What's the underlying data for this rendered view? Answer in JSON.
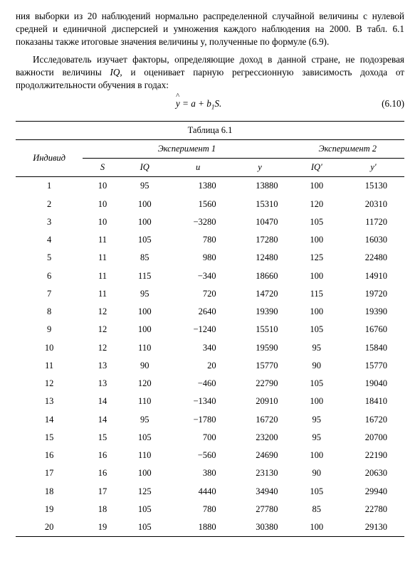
{
  "paragraphs": {
    "p1": "ния выборки из 20 наблюдений нормально распределенной случайной величины с нулевой средней и единичной дисперсией и умножения каждого наблюдения на 2000. В табл. 6.1 показаны также итоговые значения величины y, полученные по формуле (6.9).",
    "p2_a": "Исследователь изучает факторы, определяющие доход в данной стране, не подозревая важности величины ",
    "p2_iq": "IQ,",
    "p2_b": " и оценивает парную регрессионную зависимость дохода от продолжительности обучения в годах:"
  },
  "equation": {
    "lhs_var": "y",
    "rhs": " = a + b",
    "sub": "1",
    "tail": "S.",
    "number": "(6.10)"
  },
  "table": {
    "caption": "Таблица 6.1",
    "header": {
      "individ": "Индивид",
      "exp1": "Эксперимент 1",
      "exp2": "Эксперимент 2",
      "s": "S",
      "iq": "IQ",
      "u": "u",
      "y": "y",
      "iq2": "IQ'",
      "y2": "y'"
    },
    "rows": [
      {
        "idx": "1",
        "s": "10",
        "iq": "95",
        "u": "1380",
        "y": "13880",
        "iq2": "100",
        "y2": "15130"
      },
      {
        "idx": "2",
        "s": "10",
        "iq": "100",
        "u": "1560",
        "y": "15310",
        "iq2": "120",
        "y2": "20310"
      },
      {
        "idx": "3",
        "s": "10",
        "iq": "100",
        "u": "−3280",
        "y": "10470",
        "iq2": "105",
        "y2": "11720"
      },
      {
        "idx": "4",
        "s": "11",
        "iq": "105",
        "u": "780",
        "y": "17280",
        "iq2": "100",
        "y2": "16030"
      },
      {
        "idx": "5",
        "s": "11",
        "iq": "85",
        "u": "980",
        "y": "12480",
        "iq2": "125",
        "y2": "22480"
      },
      {
        "idx": "6",
        "s": "11",
        "iq": "115",
        "u": "−340",
        "y": "18660",
        "iq2": "100",
        "y2": "14910"
      },
      {
        "idx": "7",
        "s": "11",
        "iq": "95",
        "u": "720",
        "y": "14720",
        "iq2": "115",
        "y2": "19720"
      },
      {
        "idx": "8",
        "s": "12",
        "iq": "100",
        "u": "2640",
        "y": "19390",
        "iq2": "100",
        "y2": "19390"
      },
      {
        "idx": "9",
        "s": "12",
        "iq": "100",
        "u": "−1240",
        "y": "15510",
        "iq2": "105",
        "y2": "16760"
      },
      {
        "idx": "10",
        "s": "12",
        "iq": "110",
        "u": "340",
        "y": "19590",
        "iq2": "95",
        "y2": "15840"
      },
      {
        "idx": "11",
        "s": "13",
        "iq": "90",
        "u": "20",
        "y": "15770",
        "iq2": "90",
        "y2": "15770"
      },
      {
        "idx": "12",
        "s": "13",
        "iq": "120",
        "u": "−460",
        "y": "22790",
        "iq2": "105",
        "y2": "19040"
      },
      {
        "idx": "13",
        "s": "14",
        "iq": "110",
        "u": "−1340",
        "y": "20910",
        "iq2": "100",
        "y2": "18410"
      },
      {
        "idx": "14",
        "s": "14",
        "iq": "95",
        "u": "−1780",
        "y": "16720",
        "iq2": "95",
        "y2": "16720"
      },
      {
        "idx": "15",
        "s": "15",
        "iq": "105",
        "u": "700",
        "y": "23200",
        "iq2": "95",
        "y2": "20700"
      },
      {
        "idx": "16",
        "s": "16",
        "iq": "110",
        "u": "−560",
        "y": "24690",
        "iq2": "100",
        "y2": "22190"
      },
      {
        "idx": "17",
        "s": "16",
        "iq": "100",
        "u": "380",
        "y": "23130",
        "iq2": "90",
        "y2": "20630"
      },
      {
        "idx": "18",
        "s": "17",
        "iq": "125",
        "u": "4440",
        "y": "34940",
        "iq2": "105",
        "y2": "29940"
      },
      {
        "idx": "19",
        "s": "18",
        "iq": "105",
        "u": "780",
        "y": "27780",
        "iq2": "85",
        "y2": "22780"
      },
      {
        "idx": "20",
        "s": "19",
        "iq": "105",
        "u": "1880",
        "y": "30380",
        "iq2": "100",
        "y2": "29130"
      }
    ]
  }
}
